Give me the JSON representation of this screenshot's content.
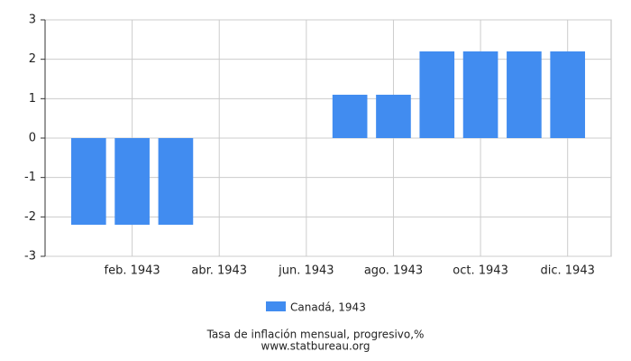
{
  "chart_data": {
    "type": "bar",
    "title": "Tasa de inflación mensual, progresivo,%",
    "subtitle": "www.statbureau.org",
    "categories": [
      null,
      "feb. 1943",
      null,
      "abr. 1943",
      null,
      "jun. 1943",
      null,
      "ago. 1943",
      null,
      "oct. 1943",
      null,
      "dic. 1943"
    ],
    "series": [
      {
        "name": "Canadá, 1943",
        "color": "#418cf0",
        "values": [
          -2.2,
          -2.2,
          -2.2,
          0,
          0,
          0,
          1.1,
          1.1,
          2.2,
          2.2,
          2.2,
          2.2
        ]
      }
    ],
    "ylim": [
      -3,
      3
    ],
    "yticks": [
      -3,
      -2,
      -1,
      0,
      1,
      2,
      3
    ],
    "grid": true
  }
}
